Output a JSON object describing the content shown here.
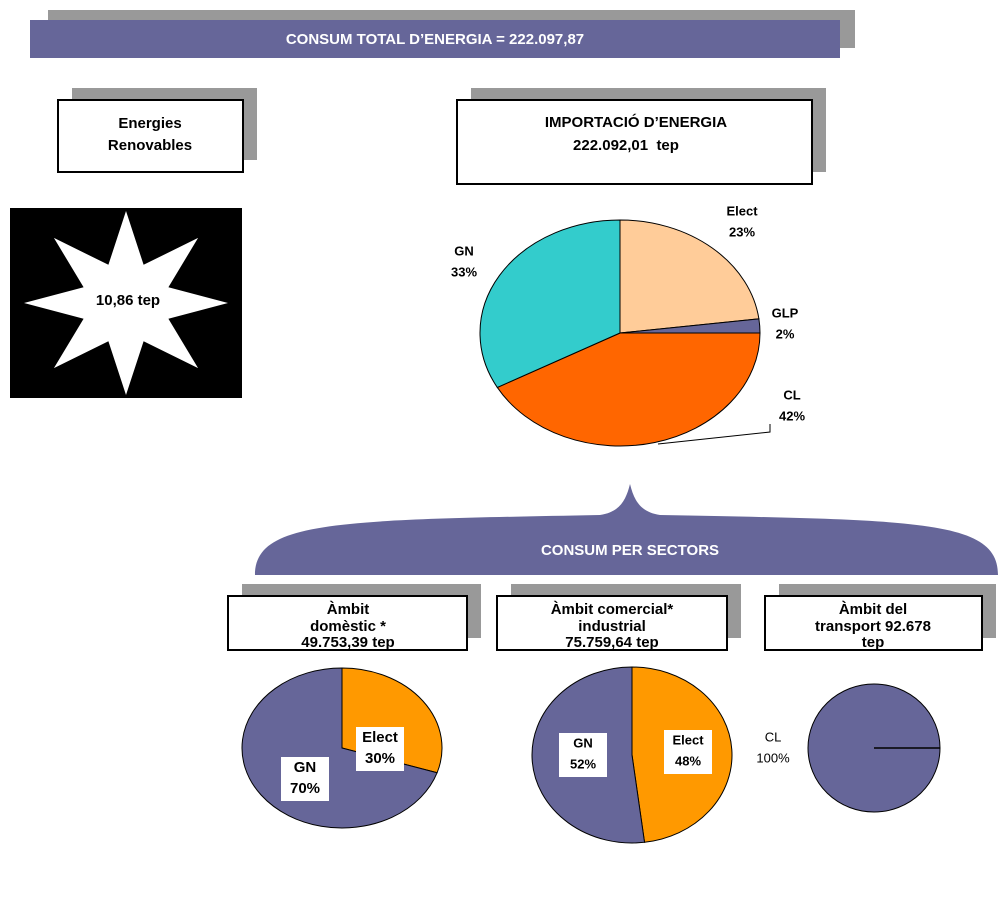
{
  "title": "CONSUM TOTAL D’ENERGIA = 222.097,87",
  "renewables": {
    "title": [
      "Energies",
      "Renovables"
    ],
    "value": "10,86 tep"
  },
  "import": {
    "title": [
      "IMPORTACIÓ D’ENERGIA",
      "222.092,01  tep"
    ]
  },
  "sectors": {
    "title": "CONSUM PER SECTORS",
    "boxes": [
      [
        "Àmbit",
        "domèstic *",
        "49.753,39 tep"
      ],
      [
        "Àmbit comercial*",
        "industrial",
        "75.759,64 tep"
      ],
      [
        "Àmbit del",
        "transport 92.678",
        "tep"
      ]
    ]
  },
  "chart_data": [
    {
      "type": "pie",
      "categories": [
        "Elect",
        "GLP",
        "CL",
        "GN"
      ],
      "values": [
        23,
        2,
        42,
        33
      ],
      "value_labels": [
        "23%",
        "2%",
        "42%",
        "33%"
      ],
      "colors": [
        "#ffcc99",
        "#666699",
        "#ff6600",
        "#33cccc"
      ]
    },
    {
      "type": "pie",
      "categories": [
        "Elect",
        "GN"
      ],
      "values": [
        30,
        70
      ],
      "value_labels": [
        "30%",
        "70%"
      ],
      "colors": [
        "#ff9900",
        "#666699"
      ]
    },
    {
      "type": "pie",
      "categories": [
        "Elect",
        "GN"
      ],
      "values": [
        48,
        52
      ],
      "value_labels": [
        "48%",
        "52%"
      ],
      "colors": [
        "#ff9900",
        "#666699"
      ]
    },
    {
      "type": "pie",
      "categories": [
        "CL"
      ],
      "values": [
        100
      ],
      "value_labels": [
        "100%"
      ],
      "colors": [
        "#666699"
      ]
    }
  ]
}
